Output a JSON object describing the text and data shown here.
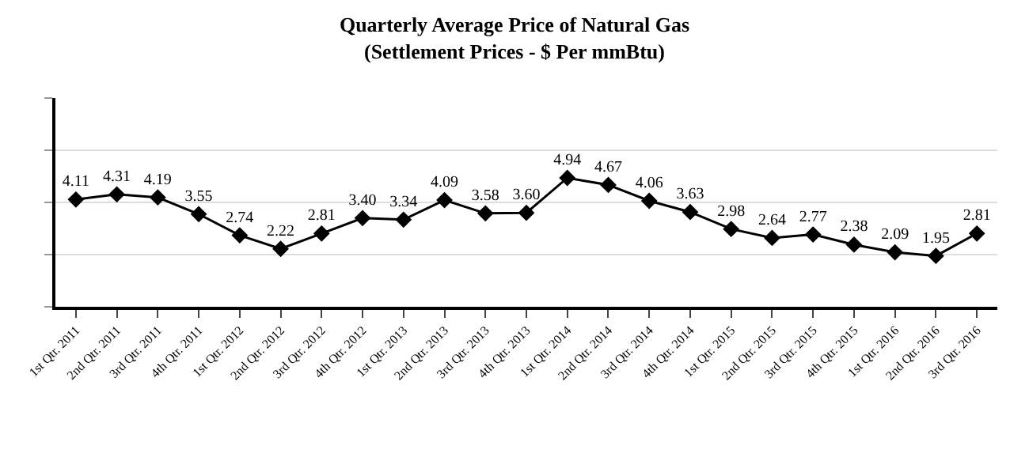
{
  "chart_data": {
    "type": "line",
    "title": "Quarterly Average Price of Natural Gas\n(Settlement Prices - $ Per mmBtu)",
    "categories": [
      "1st Qtr. 2011",
      "2nd Qtr. 2011",
      "3rd Qtr. 2011",
      "4th Qtr. 2011",
      "1st Qtr. 2012",
      "2nd Qtr. 2012",
      "3rd Qtr. 2012",
      "4th Qtr. 2012",
      "1st Qtr. 2013",
      "2nd Qtr. 2013",
      "3rd Qtr. 2013",
      "4th Qtr. 2013",
      "1st Qtr. 2014",
      "2nd Qtr. 2014",
      "3rd Qtr. 2014",
      "4th Qtr. 2014",
      "1st Qtr. 2015",
      "2nd Qtr. 2015",
      "3rd Qtr. 2015",
      "4th Qtr. 2015",
      "1st Qtr. 2016",
      "2nd Qtr. 2016",
      "3rd Qtr. 2016"
    ],
    "series": [
      {
        "color": "#000000",
        "values": [
          4.11,
          4.31,
          4.19,
          3.55,
          2.74,
          2.22,
          2.81,
          3.4,
          3.34,
          4.09,
          3.58,
          3.6,
          4.94,
          4.67,
          4.06,
          3.63,
          2.98,
          2.64,
          2.77,
          2.38,
          2.09,
          1.95,
          2.81
        ],
        "value_labels": [
          "4.11",
          "4.31",
          "4.19",
          "3.55",
          "2.74",
          "2.22",
          "2.81",
          "3.40",
          "3.34",
          "4.09",
          "3.58",
          "3.60",
          "4.94",
          "4.67",
          "4.06",
          "3.63",
          "2.98",
          "2.64",
          "2.77",
          "2.38",
          "2.09",
          "1.95",
          "2.81"
        ]
      }
    ],
    "ylim": [
      0,
      8
    ],
    "yticks": [
      {
        "value": 0,
        "label": null
      },
      {
        "value": 2,
        "label": null
      },
      {
        "value": 4,
        "label": null
      },
      {
        "value": 6,
        "label": null
      },
      {
        "value": 8,
        "label": null
      }
    ],
    "tick_labels": "x",
    "grid": "y",
    "legend": false,
    "marker": "diamond",
    "line_style": "solid"
  }
}
